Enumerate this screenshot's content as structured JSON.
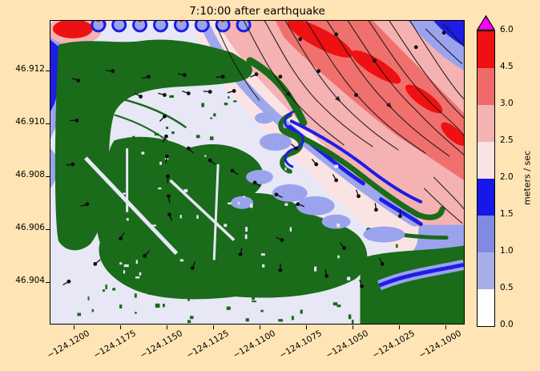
{
  "figure": {
    "title": "7:10:00 after earthquake"
  },
  "axes": {
    "y_tick_labels": [
      "46.912",
      "46.910",
      "46.908",
      "46.906",
      "46.904"
    ],
    "x_tick_labels": [
      "−124.1200",
      "−124.1175",
      "−124.1150",
      "−124.1125",
      "−124.1100",
      "−124.1075",
      "−124.1050",
      "−124.1025",
      "−124.1000"
    ]
  },
  "colorbar": {
    "label": "meters / sec",
    "tick_labels": [
      "0.0",
      "0.5",
      "1.0",
      "1.5",
      "2.0",
      "2.5",
      "3.0",
      "4.5",
      "6.0"
    ],
    "band_colors": [
      "#ffffff",
      "#a6aeea",
      "#7f8ae0",
      "#1717e8",
      "#fbe3e3",
      "#f5b2b2",
      "#f06a6a",
      "#ee1111"
    ],
    "over_arrow_color": "#ff00ff"
  },
  "palette": {
    "figure_background": "#ffe4b5",
    "land_green": "#1a6b1a",
    "calm_water": "#e7e7f6",
    "light_blue": "#9aa3ec",
    "deep_blue": "#1d1de4",
    "pale_pink": "#fbe3e3",
    "light_pink": "#f5b2b2",
    "salmon_red": "#f0706e",
    "strong_red": "#ee1111",
    "over_magenta": "#ff00ff"
  },
  "chart_data": {
    "type": "heatmap",
    "title": "7:10:00 after earthquake",
    "xlabel": "",
    "ylabel": "",
    "units": "meters / sec",
    "x_tick_values": [
      -124.12,
      -124.1175,
      -124.115,
      -124.1125,
      -124.11,
      -124.1075,
      -124.105,
      -124.1025,
      -124.1
    ],
    "y_tick_values": [
      46.912,
      46.91,
      46.908,
      46.906,
      46.904
    ],
    "colorbar_levels": [
      0.0,
      0.5,
      1.0,
      1.5,
      2.0,
      2.5,
      3.0,
      4.5,
      6.0
    ],
    "colorbar_extend": "max",
    "legend_position": "right-colorbar",
    "grid": false,
    "land_color": "#1a6b1a",
    "gauge_points": [
      [
        313,
        23,
        null
      ],
      [
        358,
        17,
        null
      ],
      [
        406,
        50,
        null
      ],
      [
        458,
        33,
        null
      ],
      [
        493,
        15,
        null
      ],
      [
        288,
        70,
        null
      ],
      [
        336,
        63,
        null
      ],
      [
        383,
        93,
        null
      ],
      [
        35,
        75,
        200
      ],
      [
        78,
        63,
        185
      ],
      [
        123,
        70,
        165
      ],
      [
        168,
        68,
        190
      ],
      [
        216,
        70,
        175
      ],
      [
        258,
        67,
        155
      ],
      [
        113,
        95,
        210
      ],
      [
        143,
        93,
        195
      ],
      [
        173,
        91,
        200
      ],
      [
        200,
        89,
        185
      ],
      [
        230,
        88,
        165
      ],
      [
        143,
        120,
        135
      ],
      [
        145,
        145,
        120
      ],
      [
        146,
        170,
        100
      ],
      [
        147,
        195,
        90
      ],
      [
        148,
        220,
        80
      ],
      [
        149,
        243,
        70
      ],
      [
        173,
        160,
        45
      ],
      [
        200,
        175,
        40
      ],
      [
        228,
        188,
        35
      ],
      [
        256,
        203,
        30
      ],
      [
        283,
        218,
        25
      ],
      [
        310,
        230,
        20
      ],
      [
        308,
        160,
        220
      ],
      [
        333,
        180,
        230
      ],
      [
        358,
        200,
        240
      ],
      [
        386,
        220,
        250
      ],
      [
        408,
        237,
        262
      ],
      [
        438,
        245,
        272
      ],
      [
        88,
        273,
        300
      ],
      [
        56,
        305,
        320
      ],
      [
        118,
        295,
        312
      ],
      [
        178,
        310,
        292
      ],
      [
        238,
        293,
        282
      ],
      [
        288,
        313,
        272
      ],
      [
        346,
        320,
        260
      ],
      [
        390,
        333,
        252
      ],
      [
        416,
        305,
        242
      ],
      [
        368,
        285,
        232
      ],
      [
        290,
        275,
        205
      ],
      [
        33,
        125,
        180
      ],
      [
        28,
        180,
        172
      ],
      [
        46,
        230,
        162
      ],
      [
        23,
        327,
        150
      ]
    ]
  }
}
